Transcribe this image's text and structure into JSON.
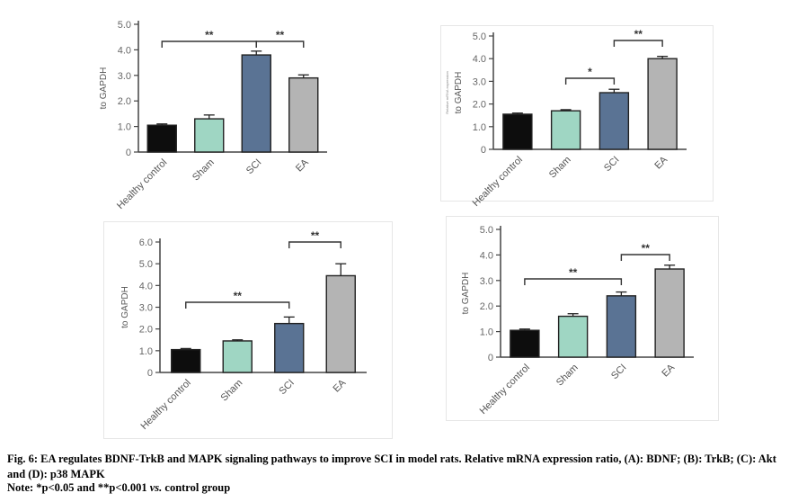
{
  "chart_data": [
    {
      "id": "A",
      "type": "bar",
      "categories": [
        "Healthy control",
        "Sham",
        "SCI",
        "EA"
      ],
      "values": [
        1.05,
        1.3,
        3.8,
        2.9
      ],
      "errors": [
        0.05,
        0.15,
        0.15,
        0.12
      ],
      "colors": [
        "#0d0d0d",
        "#9fd6c3",
        "#5a7394",
        "#b4b4b4"
      ],
      "ylabel": "to GAPDH",
      "ylim": [
        0,
        5
      ],
      "yticks": [
        "0",
        "1.0",
        "2.0",
        "3.0",
        "4.0",
        "5.0"
      ],
      "side_note": "",
      "significance": [
        {
          "from": 0,
          "to": 2,
          "label": "**"
        },
        {
          "from": 2,
          "to": 3,
          "label": "**"
        }
      ]
    },
    {
      "id": "B",
      "type": "bar",
      "categories": [
        "Healthy control",
        "Sham",
        "SCI",
        "EA"
      ],
      "values": [
        1.55,
        1.7,
        2.5,
        4.0
      ],
      "errors": [
        0.05,
        0.05,
        0.15,
        0.1
      ],
      "colors": [
        "#0d0d0d",
        "#9fd6c3",
        "#5a7394",
        "#b4b4b4"
      ],
      "ylabel": "to GAPDH",
      "ylim": [
        0,
        5
      ],
      "yticks": [
        "0",
        "1.0",
        "2.0",
        "3.0",
        "4.0",
        "5.0"
      ],
      "side_note": "Relative mRNA expression",
      "significance": [
        {
          "from": 1,
          "to": 2,
          "label": "*"
        },
        {
          "from": 2,
          "to": 3,
          "label": "**"
        }
      ]
    },
    {
      "id": "C",
      "type": "bar",
      "categories": [
        "Healthy control",
        "Sham",
        "SCI",
        "EA"
      ],
      "values": [
        1.05,
        1.45,
        2.25,
        4.45
      ],
      "errors": [
        0.05,
        0.05,
        0.3,
        0.55
      ],
      "colors": [
        "#0d0d0d",
        "#9fd6c3",
        "#5a7394",
        "#b4b4b4"
      ],
      "ylabel": "to GAPDH",
      "ylim": [
        0,
        6
      ],
      "yticks": [
        "0",
        "1.0",
        "2.0",
        "3.0",
        "4.0",
        "5.0",
        "6.0"
      ],
      "side_note": "",
      "significance": [
        {
          "from": 0,
          "to": 2,
          "label": "**"
        },
        {
          "from": 2,
          "to": 3,
          "label": "**"
        }
      ]
    },
    {
      "id": "D",
      "type": "bar",
      "categories": [
        "Healthy control",
        "Sham",
        "SCI",
        "EA"
      ],
      "values": [
        1.05,
        1.6,
        2.4,
        3.45
      ],
      "errors": [
        0.05,
        0.1,
        0.15,
        0.15
      ],
      "colors": [
        "#0d0d0d",
        "#9fd6c3",
        "#5a7394",
        "#b4b4b4"
      ],
      "ylabel": "to GAPDH",
      "ylim": [
        0,
        5
      ],
      "yticks": [
        "0",
        "1.0",
        "2.0",
        "3.0",
        "4.0",
        "5.0"
      ],
      "side_note": "",
      "significance": [
        {
          "from": 0,
          "to": 2,
          "label": "**"
        },
        {
          "from": 2,
          "to": 3,
          "label": "**"
        }
      ]
    }
  ],
  "caption": {
    "main": "Fig. 6: EA regulates BDNF-TrkB and MAPK signaling pathways to improve SCI in model rats. Relative mRNA expression ratio, (A): BDNF; (B): TrkB; (C): Akt and (D): p38 MAPK",
    "note_prefix": "Note: *p<0.05 and **p<0.001 ",
    "note_vs": "vs.",
    "note_suffix": " control group"
  }
}
